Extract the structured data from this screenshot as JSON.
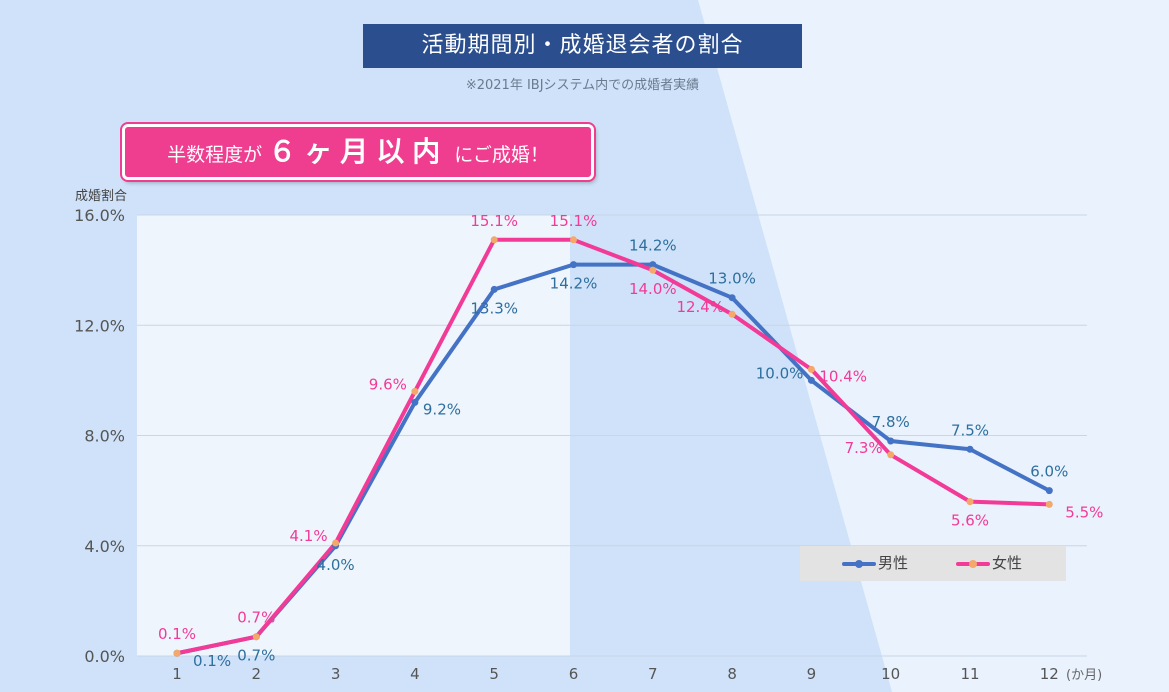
{
  "header": {
    "title": "活動期間別・成婚退会者の割合",
    "note": "※2021年 IBJシステム内での成婚者実績"
  },
  "callout": {
    "pre": "半数程度が",
    "highlight": "６ヶ月以内",
    "post": "にご成婚！"
  },
  "colors": {
    "male": "#4472c4",
    "female": "#f23a97",
    "title_bg": "#2b4f8e",
    "callout_bg": "#ef3d8f",
    "male_label": "#2e6f9e",
    "female_label": "#f23a97"
  },
  "chart_data": {
    "type": "line",
    "title": "活動期間別・成婚退会者の割合",
    "ylabel": "成婚割合",
    "xlabel": "(か月)",
    "x": [
      1,
      2,
      3,
      4,
      5,
      6,
      7,
      8,
      9,
      10,
      11,
      12
    ],
    "ylim": [
      0,
      16
    ],
    "yticks": [
      "0.0%",
      "4.0%",
      "8.0%",
      "12.0%",
      "16.0%"
    ],
    "grid": true,
    "legend_position": "bottom-right",
    "series": [
      {
        "name": "男性",
        "values": [
          0.1,
          0.7,
          4.0,
          9.2,
          13.3,
          14.2,
          14.2,
          13.0,
          10.0,
          7.8,
          7.5,
          6.0
        ],
        "labels": [
          "0.1%",
          "0.7%",
          "4.0%",
          "9.2%",
          "13.3%",
          "14.2%",
          "14.2%",
          "13.0%",
          "10.0%",
          "7.8%",
          "7.5%",
          "6.0%"
        ]
      },
      {
        "name": "女性",
        "values": [
          0.1,
          0.7,
          4.1,
          9.6,
          15.1,
          15.1,
          14.0,
          12.4,
          10.4,
          7.3,
          5.6,
          5.5
        ],
        "labels": [
          "0.1%",
          "0.7%",
          "4.1%",
          "9.6%",
          "15.1%",
          "15.1%",
          "14.0%",
          "12.4%",
          "10.4%",
          "7.3%",
          "5.6%",
          "5.5%"
        ]
      }
    ]
  }
}
